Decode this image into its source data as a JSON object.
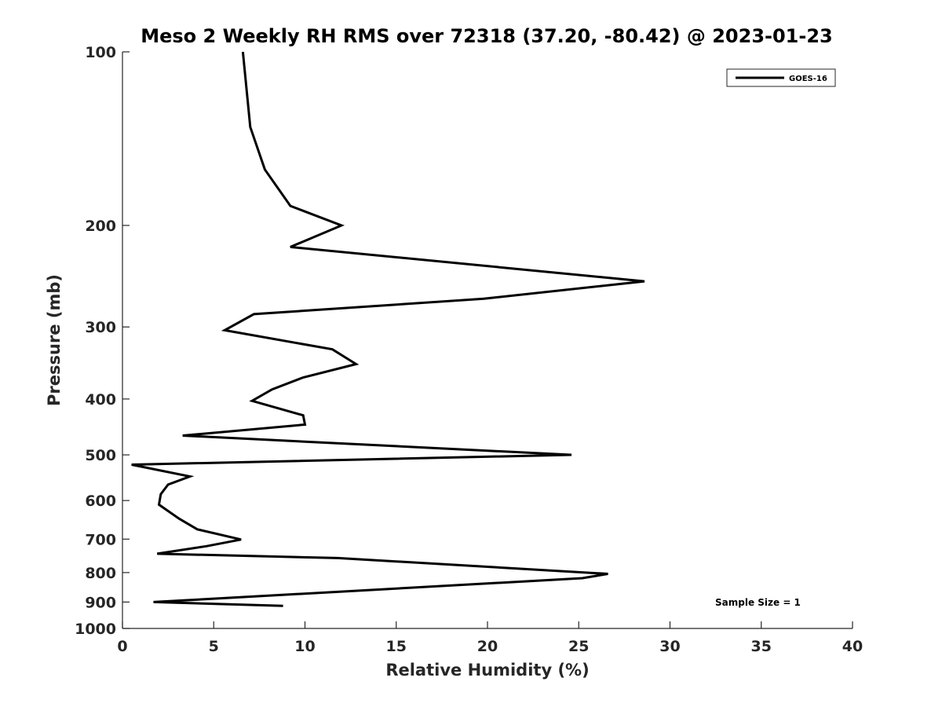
{
  "chart_data": {
    "type": "line",
    "title": "Meso 2 Weekly RH RMS over 72318 (37.20, -80.42) @ 2023-01-23",
    "xlabel": "Relative Humidity (%)",
    "ylabel": "Pressure (mb)",
    "xlim": [
      0,
      40
    ],
    "ylim": [
      1000,
      100
    ],
    "yscale": "log",
    "y_inverted": true,
    "x_ticks": [
      0,
      5,
      10,
      15,
      20,
      25,
      30,
      35,
      40
    ],
    "y_ticks": [
      100,
      200,
      300,
      400,
      500,
      600,
      700,
      800,
      900,
      1000
    ],
    "grid": false,
    "legend_position": "top-right",
    "annotation": "Sample Size = 1",
    "series": [
      {
        "name": "GOES-16",
        "color": "#000000",
        "points": [
          {
            "x": 6.6,
            "y": 100
          },
          {
            "x": 7.0,
            "y": 135
          },
          {
            "x": 7.8,
            "y": 160
          },
          {
            "x": 9.2,
            "y": 185
          },
          {
            "x": 12.0,
            "y": 200
          },
          {
            "x": 9.2,
            "y": 218
          },
          {
            "x": 28.6,
            "y": 250
          },
          {
            "x": 19.8,
            "y": 268
          },
          {
            "x": 7.2,
            "y": 285
          },
          {
            "x": 5.6,
            "y": 304
          },
          {
            "x": 11.5,
            "y": 328
          },
          {
            "x": 12.8,
            "y": 348
          },
          {
            "x": 9.9,
            "y": 367
          },
          {
            "x": 8.2,
            "y": 385
          },
          {
            "x": 7.1,
            "y": 403
          },
          {
            "x": 9.9,
            "y": 427
          },
          {
            "x": 10.0,
            "y": 443
          },
          {
            "x": 3.3,
            "y": 463
          },
          {
            "x": 24.6,
            "y": 500
          },
          {
            "x": 0.5,
            "y": 520
          },
          {
            "x": 3.7,
            "y": 545
          },
          {
            "x": 2.5,
            "y": 563
          },
          {
            "x": 2.1,
            "y": 585
          },
          {
            "x": 2.0,
            "y": 610
          },
          {
            "x": 3.1,
            "y": 645
          },
          {
            "x": 4.1,
            "y": 673
          },
          {
            "x": 6.5,
            "y": 701
          },
          {
            "x": 4.6,
            "y": 720
          },
          {
            "x": 1.9,
            "y": 742
          },
          {
            "x": 11.8,
            "y": 755
          },
          {
            "x": 26.6,
            "y": 804
          },
          {
            "x": 25.2,
            "y": 818
          },
          {
            "x": 1.7,
            "y": 900
          },
          {
            "x": 8.8,
            "y": 914
          }
        ]
      }
    ]
  }
}
